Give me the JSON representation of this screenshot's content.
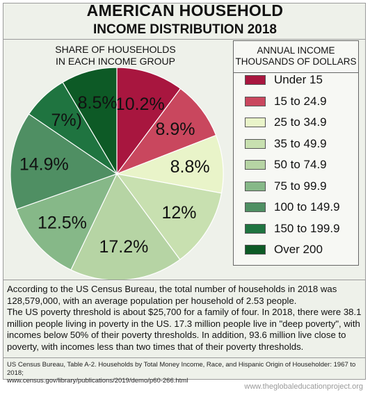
{
  "title": "AMERICAN HOUSEHOLD",
  "subtitle": "INCOME DISTRIBUTION 2018",
  "pie_title_line1": "SHARE OF HOUSEHOLDS",
  "pie_title_line2": "IN EACH INCOME GROUP",
  "legend_title_line1": "ANNUAL INCOME",
  "legend_title_line2": "THOUSANDS OF DOLLARS",
  "chart_data": {
    "type": "pie",
    "categories": [
      "Under 15",
      "15 to 24.9",
      "25 to 34.9",
      "35 to 49.9",
      "50 to 74.9",
      "75 to 99.9",
      "100 to 149.9",
      "150 to 199.9",
      "Over 200"
    ],
    "values": [
      10.2,
      8.9,
      8.8,
      12,
      17.2,
      12.5,
      14.9,
      7,
      8.5
    ],
    "labels": [
      "10.2%",
      "8.9%",
      "8.8%",
      "12%",
      "17.2%",
      "12.5%",
      "14.9%",
      "7%)",
      "8.5%"
    ],
    "colors": [
      "#a8163f",
      "#c9475e",
      "#e9f4c9",
      "#c8e0b0",
      "#b6d4a4",
      "#86b888",
      "#4f8f63",
      "#1f7440",
      "#0d5a26"
    ]
  },
  "description": [
    "According to the US Census Bureau, the total number of households in 2018 was 128,579,000, with an average population per household of 2.53 people.",
    "The US poverty threshold is about $25,700 for a family of four. In 2018, there were 38.1 million people living in poverty in the US. 17.3 million people live in \"deep poverty\", with incomes below 50% of their poverty thresholds. In addition, 93.6 million live close to poverty, with incomes less than two times that of their poverty thresholds."
  ],
  "source_line1": "US Census Bureau, Table A-2. Households by Total Money Income, Race, and Hispanic Origin of Householder: 1967 to 2018;",
  "source_line2": "www.census.gov/library/publications/2019/demo/p60-266.html",
  "watermark": "www.theglobaleducationproject.org"
}
